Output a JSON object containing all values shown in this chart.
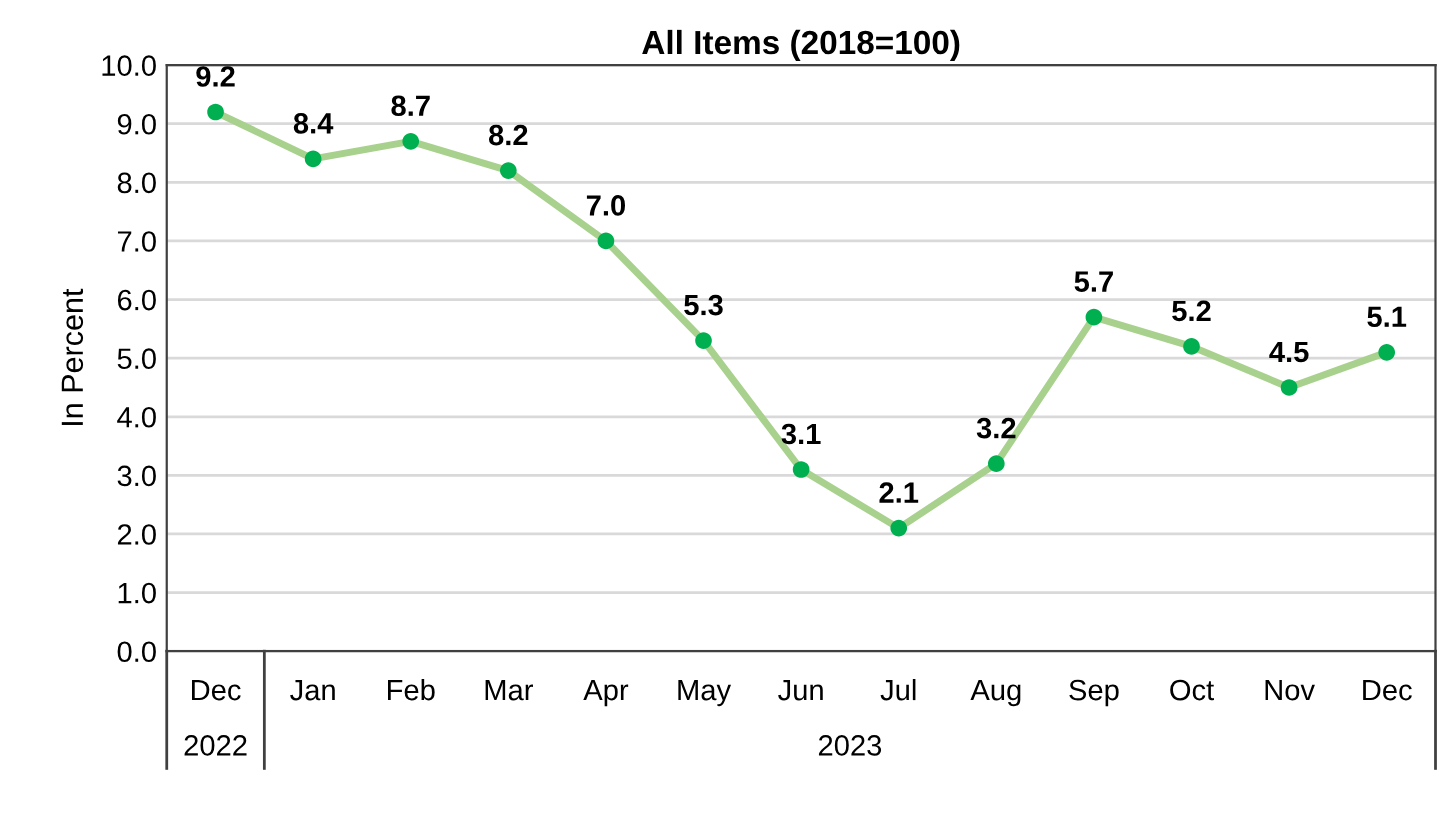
{
  "chart_data": {
    "type": "line",
    "title": "All Items (2018=100)",
    "ylabel": "In Percent",
    "categories": [
      "Dec",
      "Jan",
      "Feb",
      "Mar",
      "Apr",
      "May",
      "Jun",
      "Jul",
      "Aug",
      "Sep",
      "Oct",
      "Nov",
      "Dec"
    ],
    "series": [
      {
        "color": "#a9d18e",
        "colors": [
          "#00b050",
          "#00b050",
          "#00b050",
          "#00b050",
          "#00b050",
          "#00b050",
          "#00b050",
          "#00b050",
          "#00b050",
          "#00b050",
          "#00b050",
          "#00b050",
          "#00b050"
        ],
        "values": [
          9.2,
          8.4,
          8.7,
          8.2,
          7.0,
          5.3,
          3.1,
          2.1,
          3.2,
          5.7,
          5.2,
          4.5,
          5.1
        ],
        "value_labels": [
          "9.2",
          "8.4",
          "8.7",
          "8.2",
          "7.0",
          "5.3",
          "3.1",
          "2.1",
          "3.2",
          "5.7",
          "5.2",
          "4.5",
          "5.1"
        ]
      }
    ],
    "ylim": [
      0,
      10
    ],
    "yticks": [
      {
        "value": 0,
        "label": "0.0"
      },
      {
        "value": 1,
        "label": "1.0"
      },
      {
        "value": 2,
        "label": "2.0"
      },
      {
        "value": 3,
        "label": "3.0"
      },
      {
        "value": 4,
        "label": "4.0"
      },
      {
        "value": 5,
        "label": "5.0"
      },
      {
        "value": 6,
        "label": "6.0"
      },
      {
        "value": 7,
        "label": "7.0"
      },
      {
        "value": 8,
        "label": "8.0"
      },
      {
        "value": 9,
        "label": "9.0"
      },
      {
        "value": 10,
        "label": "10.0"
      }
    ],
    "annotations": [
      "2022",
      "2023"
    ],
    "grid": "y",
    "marker": "circle",
    "line_style": "solid",
    "legend": false
  }
}
